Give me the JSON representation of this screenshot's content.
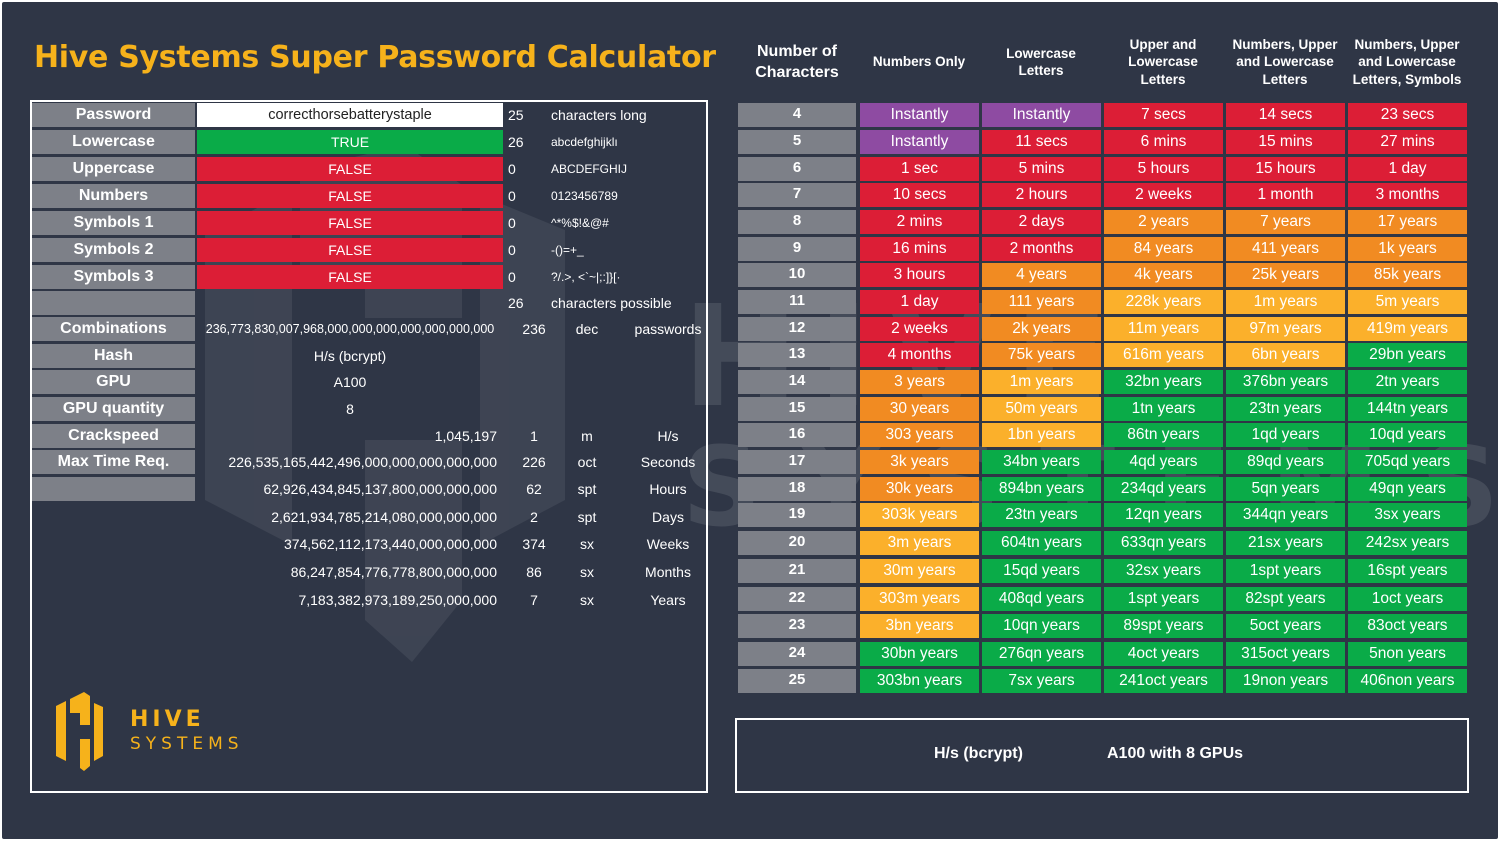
{
  "title": "Hive Systems Super Password Calculator",
  "colors": {
    "background": "#2f3646",
    "title": "#f6b21b",
    "label_bg": "#7d8088",
    "purple": "#8e4ba2",
    "red": "#dc1e36",
    "orange": "#f18b22",
    "yellow": "#fbb02b",
    "green": "#0aab48"
  },
  "logo": {
    "word1": "HIVE",
    "word2": "SYSTEMS"
  },
  "watermark": {
    "word1": "HIVE",
    "word2": "SYSTEMS"
  },
  "inputs": {
    "password": {
      "label": "Password",
      "value": "correcthorsebatterystaple",
      "count": "25",
      "desc": "characters long"
    },
    "lowercase": {
      "label": "Lowercase",
      "value": "TRUE",
      "count": "26",
      "desc": "abcdefghijklı"
    },
    "uppercase": {
      "label": "Uppercase",
      "value": "FALSE",
      "count": "0",
      "desc": "ABCDEFGHIJ"
    },
    "numbers": {
      "label": "Numbers",
      "value": "FALSE",
      "count": "0",
      "desc": "0123456789"
    },
    "symbols1": {
      "label": "Symbols 1",
      "value": "FALSE",
      "count": "0",
      "desc": "^*%$!&@#"
    },
    "symbols2": {
      "label": "Symbols 2",
      "value": "FALSE",
      "count": "0",
      "desc": "-()=+_"
    },
    "symbols3": {
      "label": "Symbols 3",
      "value": "FALSE",
      "count": "0",
      "desc": "?/.>, <`~|;:]}[·"
    },
    "possible": {
      "count": "26",
      "desc": "characters possible"
    },
    "combinations": {
      "label": "Combinations",
      "value": "236,773,830,007,968,000,000,000,000,000,000,000",
      "count": "236",
      "unit": "dec",
      "unit2": "passwords"
    },
    "hash": {
      "label": "Hash",
      "value": "H/s (bcrypt)"
    },
    "gpu": {
      "label": "GPU",
      "value": "A100"
    },
    "gpu_quantity": {
      "label": "GPU quantity",
      "value": "8"
    },
    "crackspeed": {
      "label": "Crackspeed",
      "value": "1,045,197",
      "count": "1",
      "unit": "m",
      "unit2": "H/s"
    },
    "max_time": {
      "label": "Max Time Req.",
      "value": "226,535,165,442,496,000,000,000,000,000",
      "count": "226",
      "unit": "oct",
      "unit2": "Seconds"
    },
    "hours": {
      "value": "62,926,434,845,137,800,000,000,000",
      "count": "62",
      "unit": "spt",
      "unit2": "Hours"
    },
    "days": {
      "value": "2,621,934,785,214,080,000,000,000",
      "count": "2",
      "unit": "spt",
      "unit2": "Days"
    },
    "weeks": {
      "value": "374,562,112,173,440,000,000,000",
      "count": "374",
      "unit": "sx",
      "unit2": "Weeks"
    },
    "months": {
      "value": "86,247,854,776,778,800,000,000",
      "count": "86",
      "unit": "sx",
      "unit2": "Months"
    },
    "years": {
      "value": "7,183,382,973,189,250,000,000",
      "count": "7",
      "unit": "sx",
      "unit2": "Years"
    }
  },
  "table": {
    "headers": [
      [
        "Number of",
        "Characters"
      ],
      [
        "Numbers Only"
      ],
      [
        "Lowercase",
        "Letters"
      ],
      [
        "Upper and",
        "Lowercase",
        "Letters"
      ],
      [
        "Numbers, Upper",
        "and Lowercase",
        "Letters"
      ],
      [
        "Numbers, Upper",
        "and Lowercase",
        "Letters, Symbols"
      ]
    ],
    "rows": [
      {
        "len": "4",
        "cells": [
          "Instantly",
          "Instantly",
          "7 secs",
          "14 secs",
          "23 secs"
        ],
        "colors": [
          "purple",
          "purple",
          "red",
          "red",
          "red"
        ]
      },
      {
        "len": "5",
        "cells": [
          "Instantly",
          "11 secs",
          "6 mins",
          "15 mins",
          "27 mins"
        ],
        "colors": [
          "purple",
          "red",
          "red",
          "red",
          "red"
        ]
      },
      {
        "len": "6",
        "cells": [
          "1 sec",
          "5 mins",
          "5 hours",
          "15 hours",
          "1 day"
        ],
        "colors": [
          "red",
          "red",
          "red",
          "red",
          "red"
        ]
      },
      {
        "len": "7",
        "cells": [
          "10 secs",
          "2 hours",
          "2 weeks",
          "1 month",
          "3 months"
        ],
        "colors": [
          "red",
          "red",
          "red",
          "red",
          "red"
        ]
      },
      {
        "len": "8",
        "cells": [
          "2 mins",
          "2 days",
          "2 years",
          "7 years",
          "17 years"
        ],
        "colors": [
          "red",
          "red",
          "orange",
          "orange",
          "orange"
        ]
      },
      {
        "len": "9",
        "cells": [
          "16 mins",
          "2 months",
          "84 years",
          "411 years",
          "1k years"
        ],
        "colors": [
          "red",
          "red",
          "orange",
          "orange",
          "orange"
        ]
      },
      {
        "len": "10",
        "cells": [
          "3 hours",
          "4 years",
          "4k years",
          "25k years",
          "85k years"
        ],
        "colors": [
          "red",
          "orange",
          "orange",
          "orange",
          "orange"
        ]
      },
      {
        "len": "11",
        "cells": [
          "1 day",
          "111 years",
          "228k years",
          "1m years",
          "5m years"
        ],
        "colors": [
          "red",
          "orange",
          "yellow",
          "yellow",
          "yellow"
        ]
      },
      {
        "len": "12",
        "cells": [
          "2 weeks",
          "2k years",
          "11m years",
          "97m years",
          "419m years"
        ],
        "colors": [
          "red",
          "orange",
          "yellow",
          "yellow",
          "yellow"
        ]
      },
      {
        "len": "13",
        "cells": [
          "4 months",
          "75k years",
          "616m years",
          "6bn years",
          "29bn years"
        ],
        "colors": [
          "red",
          "orange",
          "yellow",
          "yellow",
          "green"
        ]
      },
      {
        "len": "14",
        "cells": [
          "3 years",
          "1m years",
          "32bn years",
          "376bn years",
          "2tn years"
        ],
        "colors": [
          "orange",
          "yellow",
          "green",
          "green",
          "green"
        ]
      },
      {
        "len": "15",
        "cells": [
          "30 years",
          "50m years",
          "1tn years",
          "23tn years",
          "144tn years"
        ],
        "colors": [
          "orange",
          "yellow",
          "green",
          "green",
          "green"
        ]
      },
      {
        "len": "16",
        "cells": [
          "303 years",
          "1bn years",
          "86tn years",
          "1qd years",
          "10qd years"
        ],
        "colors": [
          "orange",
          "yellow",
          "green",
          "green",
          "green"
        ]
      },
      {
        "len": "17",
        "cells": [
          "3k years",
          "34bn years",
          "4qd years",
          "89qd years",
          "705qd years"
        ],
        "colors": [
          "orange",
          "green",
          "green",
          "green",
          "green"
        ]
      },
      {
        "len": "18",
        "cells": [
          "30k years",
          "894bn years",
          "234qd years",
          "5qn years",
          "49qn years"
        ],
        "colors": [
          "orange",
          "green",
          "green",
          "green",
          "green"
        ]
      },
      {
        "len": "19",
        "cells": [
          "303k years",
          "23tn years",
          "12qn years",
          "344qn years",
          "3sx years"
        ],
        "colors": [
          "yellow",
          "green",
          "green",
          "green",
          "green"
        ]
      },
      {
        "len": "20",
        "cells": [
          "3m years",
          "604tn years",
          "633qn years",
          "21sx years",
          "242sx years"
        ],
        "colors": [
          "yellow",
          "green",
          "green",
          "green",
          "green"
        ]
      },
      {
        "len": "21",
        "cells": [
          "30m years",
          "15qd years",
          "32sx years",
          "1spt years",
          "16spt years"
        ],
        "colors": [
          "yellow",
          "green",
          "green",
          "green",
          "green"
        ]
      },
      {
        "len": "22",
        "cells": [
          "303m years",
          "408qd years",
          "1spt years",
          "82spt years",
          "1oct years"
        ],
        "colors": [
          "yellow",
          "green",
          "green",
          "green",
          "green"
        ]
      },
      {
        "len": "23",
        "cells": [
          "3bn years",
          "10qn years",
          "89spt years",
          "5oct years",
          "83oct years"
        ],
        "colors": [
          "yellow",
          "green",
          "green",
          "green",
          "green"
        ]
      },
      {
        "len": "24",
        "cells": [
          "30bn years",
          "276qn years",
          "4oct years",
          "315oct years",
          "5non years"
        ],
        "colors": [
          "green",
          "green",
          "green",
          "green",
          "green"
        ]
      },
      {
        "len": "25",
        "cells": [
          "303bn years",
          "7sx years",
          "241oct years",
          "19non years",
          "406non years"
        ],
        "colors": [
          "green",
          "green",
          "green",
          "green",
          "green"
        ]
      }
    ]
  },
  "footer": {
    "hash": "H/s (bcrypt)",
    "gpu": "A100 with 8 GPUs"
  }
}
